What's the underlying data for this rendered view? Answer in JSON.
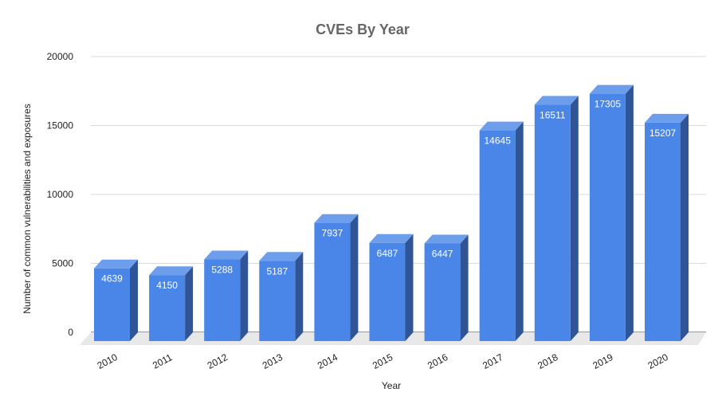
{
  "chart_data": {
    "type": "bar",
    "title": "CVEs By Year",
    "xlabel": "Year",
    "ylabel": "Number of common vulnerabilities and exposures",
    "categories": [
      "2010",
      "2011",
      "2012",
      "2013",
      "2014",
      "2015",
      "2016",
      "2017",
      "2018",
      "2019",
      "2020"
    ],
    "values": [
      4639,
      4150,
      5288,
      5187,
      7937,
      6487,
      6447,
      14645,
      16511,
      17305,
      15207
    ],
    "ylim": [
      0,
      20000
    ],
    "yticks": [
      "0",
      "5000",
      "10000",
      "15000",
      "20000"
    ],
    "style": "3d-column",
    "grid": true,
    "legend": "none",
    "colors": {
      "bar_front": "#4a86e8",
      "bar_top": "#6d9eeb",
      "bar_side": "#2f5597",
      "floor": "#e8e8e8",
      "grid": "#d9d9d9",
      "title": "#666666"
    }
  }
}
